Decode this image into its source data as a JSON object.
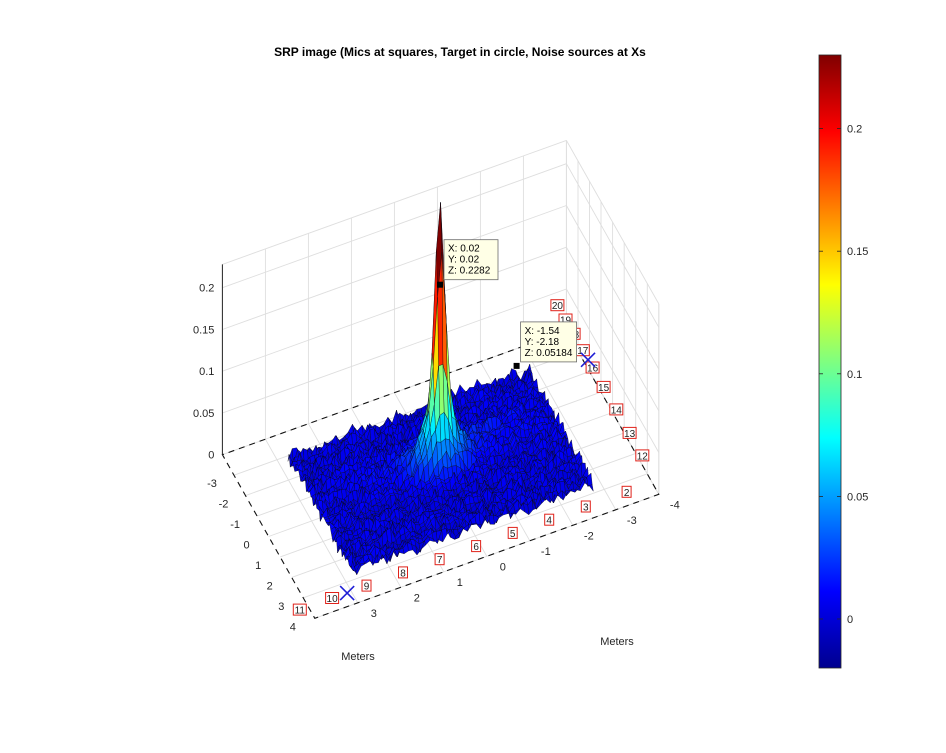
{
  "chart_data": {
    "type": "surface",
    "title": "SRP image (Mics at squares, Target in circle, Noise sources at Xs",
    "xlabel": "Meters",
    "ylabel": "Meters",
    "zlabel": "",
    "xlim": [
      -4,
      4
    ],
    "ylim": [
      -4,
      4
    ],
    "zlim": [
      0,
      0.22
    ],
    "surface_extent": [
      -2.8,
      2.8
    ],
    "x_ticks": [
      "-3",
      "-2",
      "-1",
      "0",
      "1",
      "2",
      "3",
      "4"
    ],
    "x_tick_values": [
      -3,
      -2,
      -1,
      0,
      1,
      2,
      3,
      4
    ],
    "y_ticks": [
      "-4",
      "-3",
      "-2",
      "-1",
      "0",
      "1",
      "2",
      "3"
    ],
    "y_tick_values": [
      -4,
      -3,
      -2,
      -1,
      0,
      1,
      2,
      3
    ],
    "z_ticks": [
      "0",
      "0.05",
      "0.1",
      "0.15",
      "0.2"
    ],
    "z_tick_values": [
      0,
      0.05,
      0.1,
      0.15,
      0.2
    ],
    "grid": true,
    "colormap": "jet",
    "colorbar": {
      "min": -0.02,
      "max": 0.23,
      "ticks": [
        "0",
        "0.05",
        "0.1",
        "0.15",
        "0.2"
      ],
      "tick_values": [
        0,
        0.05,
        0.1,
        0.15,
        0.2
      ]
    },
    "peak": {
      "x": 0.02,
      "y": 0.02,
      "z": 0.2282
    },
    "datatips": [
      {
        "x": 0.02,
        "y": 0.02,
        "z": 0.2282,
        "lines": [
          "X: 0.02",
          "Y: 0.02",
          "Z: 0.2282"
        ]
      },
      {
        "x": -1.54,
        "y": -2.18,
        "z": 0.05184,
        "lines": [
          "X: -1.54",
          "Y: -2.18",
          "Z: 0.05184"
        ]
      }
    ],
    "microphones": [
      {
        "label": "2",
        "x": 3.45,
        "y": -3.4
      },
      {
        "label": "3",
        "x": 3.45,
        "y": -2.45
      },
      {
        "label": "4",
        "x": 3.45,
        "y": -1.6
      },
      {
        "label": "5",
        "x": 3.45,
        "y": -0.75
      },
      {
        "label": "6",
        "x": 3.45,
        "y": 0.1
      },
      {
        "label": "7",
        "x": 3.45,
        "y": 0.95
      },
      {
        "label": "8",
        "x": 3.45,
        "y": 1.8
      },
      {
        "label": "9",
        "x": 3.45,
        "y": 2.65
      },
      {
        "label": "10",
        "x": 3.45,
        "y": 3.45
      },
      {
        "label": "11",
        "x": 3.45,
        "y": 4.2
      },
      {
        "label": "12",
        "x": 2.2,
        "y": -4.1
      },
      {
        "label": "13",
        "x": 1.1,
        "y": -4.1
      },
      {
        "label": "14",
        "x": -0.05,
        "y": -4.1
      },
      {
        "label": "15",
        "x": -1.15,
        "y": -4.1
      },
      {
        "label": "16",
        "x": -2.1,
        "y": -4.1
      },
      {
        "label": "17",
        "x": -2.95,
        "y": -4.1
      },
      {
        "label": "18",
        "x": -3.75,
        "y": -4.1
      },
      {
        "label": "19",
        "x": -4.45,
        "y": -4.1
      },
      {
        "label": "20",
        "x": -5.15,
        "y": -4.1
      }
    ],
    "noise_sources": [
      {
        "x": -2.5,
        "y": -4.1
      },
      {
        "x": 3.45,
        "y": 3.1
      }
    ],
    "colors": {
      "axis": "#262626",
      "grid": "#dedede",
      "mic_marker": "#e0221a",
      "noise_marker": "#1f1fd6",
      "datatip_fill": "#ffffe6",
      "surface_edge": "#0a0a14"
    }
  }
}
